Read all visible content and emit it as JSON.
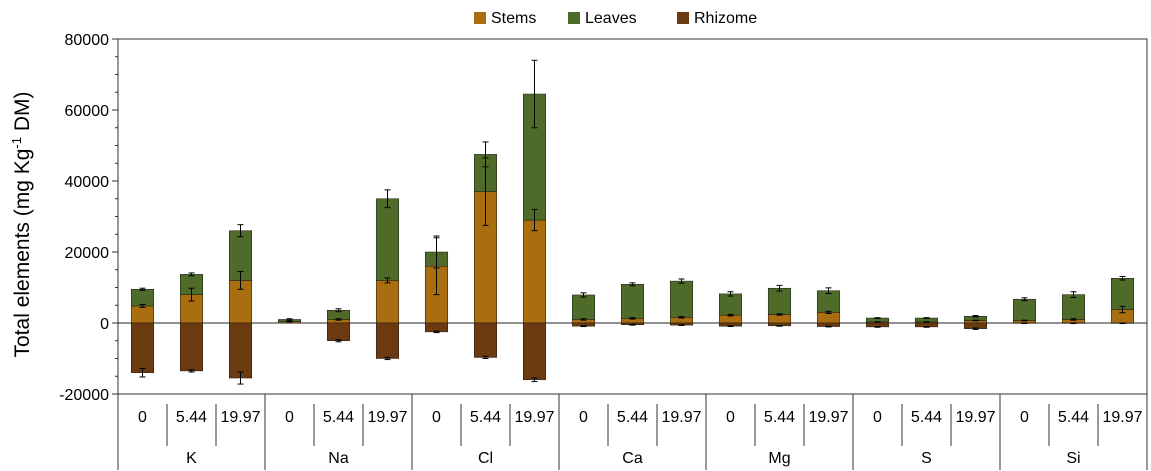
{
  "chart_data": {
    "type": "bar",
    "stacked": true,
    "ylabel": {
      "text": "Total elements (mg Kg",
      "superscript": "-1",
      "suffix": " DM)"
    },
    "ylim": [
      -20000,
      80000
    ],
    "yticks": [
      -20000,
      0,
      20000,
      40000,
      60000,
      80000
    ],
    "yticks_labels": [
      "-20000",
      "0",
      "20000",
      "40000",
      "60000",
      "80000"
    ],
    "legend_position": "top-center",
    "groups": [
      "K",
      "Na",
      "Cl",
      "Ca",
      "Mg",
      "S",
      "Si"
    ],
    "subcategories": [
      "0",
      "5.44",
      "19.97"
    ],
    "series": [
      {
        "name": "Stems",
        "color": "#A86E0F",
        "values": [
          4800,
          8000,
          12000,
          400,
          1000,
          12000,
          16000,
          37000,
          29000,
          1000,
          1300,
          1600,
          2200,
          2400,
          3000,
          300,
          300,
          700,
          700,
          1000,
          3800
        ],
        "errors": [
          400,
          1800,
          2500,
          100,
          200,
          700,
          8000,
          9500,
          3000,
          200,
          200,
          200,
          200,
          200,
          300,
          50,
          50,
          100,
          100,
          200,
          900
        ]
      },
      {
        "name": "Leaves",
        "color": "#4E6B2A",
        "values": [
          4700,
          5700,
          14000,
          600,
          2600,
          23000,
          4000,
          10500,
          35500,
          6900,
          9600,
          10200,
          6000,
          7400,
          6100,
          1100,
          1100,
          1200,
          6000,
          7000,
          8800
        ],
        "errors": [
          300,
          400,
          1700,
          200,
          400,
          2500,
          4500,
          3500,
          9500,
          600,
          400,
          600,
          600,
          800,
          800,
          100,
          100,
          200,
          400,
          800,
          500
        ]
      },
      {
        "name": "Rhizome",
        "color": "#6B3A10",
        "values": [
          -14000,
          -13500,
          -15500,
          0,
          -5000,
          -10000,
          -2500,
          -9700,
          -16000,
          -900,
          -500,
          -600,
          -900,
          -800,
          -1000,
          -1100,
          -1100,
          -1600,
          -100,
          -100,
          -100
        ],
        "errors": [
          1200,
          300,
          1700,
          0,
          300,
          300,
          200,
          300,
          500,
          100,
          100,
          100,
          100,
          100,
          100,
          100,
          100,
          200,
          50,
          50,
          50
        ]
      }
    ]
  }
}
